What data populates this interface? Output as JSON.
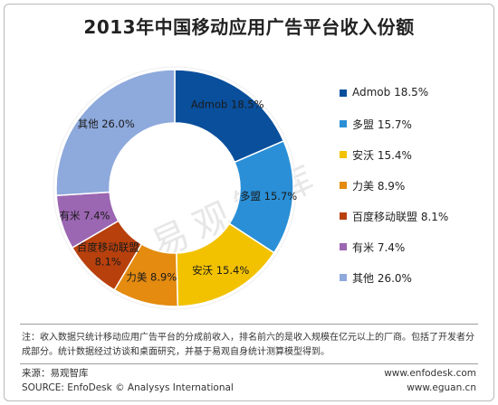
{
  "chart_data": {
    "type": "pie",
    "variant": "donut",
    "title": "2013年中国移动应用广告平台收入份额",
    "slices": [
      {
        "name": "Admob",
        "value": 18.5,
        "value_label": "18.5%",
        "color": "#0a4f9c"
      },
      {
        "name": "多盟",
        "value": 15.7,
        "value_label": "15.7%",
        "color": "#2a8fd6"
      },
      {
        "name": "安沃",
        "value": 15.4,
        "value_label": "15.4%",
        "color": "#f2c200"
      },
      {
        "name": "力美",
        "value": 8.9,
        "value_label": "8.9%",
        "color": "#e48b10"
      },
      {
        "name": "百度移动联盟",
        "value": 8.1,
        "value_label": "8.1%",
        "color": "#b8400d"
      },
      {
        "name": "有米",
        "value": 7.4,
        "value_label": "7.4%",
        "color": "#9b66b2"
      },
      {
        "name": "其他",
        "value": 26.0,
        "value_label": "26.0%",
        "color": "#8ea9dc"
      }
    ],
    "legend_position": "right"
  },
  "watermark": "易观智库",
  "note": "注：收入数据只统计移动应用广告平台的分成前收入，排名前六的是收入规模在亿元以上的厂商。包括了开发者分成部分。统计数据经过访谈和桌面研究，并基于易观自身统计测算模型得到。",
  "footer": {
    "source_cn": "来源：易观智库",
    "source_en": "SOURCE: EnfoDesk © Analysys International",
    "url1": "www.enfodesk.com",
    "url2": "www.eguan.cn"
  }
}
